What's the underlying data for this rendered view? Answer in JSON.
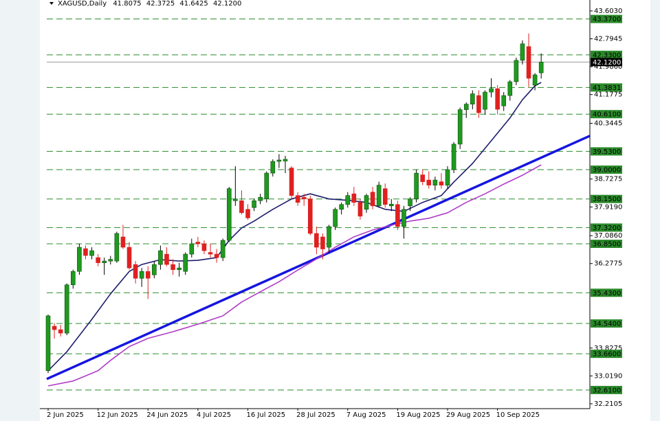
{
  "chart_data": {
    "type": "candlestick",
    "title": "XAGUSD,Daily",
    "header_values": [
      41.8075,
      42.3725,
      41.6425,
      {
        "value": 42.12,
        "label": "42.1200"
      }
    ],
    "categories": [
      "2 Jun 2025",
      null,
      null,
      null,
      null,
      null,
      null,
      null,
      "12 Jun 2025",
      null,
      null,
      null,
      null,
      null,
      null,
      null,
      "24 Jun 2025",
      null,
      null,
      null,
      null,
      null,
      null,
      null,
      "4 Jul 2025",
      null,
      null,
      null,
      null,
      null,
      null,
      null,
      "16 Jul 2025",
      null,
      null,
      null,
      null,
      null,
      null,
      null,
      "28 Jul 2025",
      null,
      null,
      null,
      null,
      null,
      null,
      null,
      "7 Aug 2025",
      null,
      null,
      null,
      null,
      null,
      null,
      null,
      "19 Aug 2025",
      null,
      null,
      null,
      null,
      null,
      null,
      null,
      "29 Aug 2025",
      null,
      null,
      null,
      null,
      null,
      null,
      null,
      "10 Sep 2025",
      null,
      null,
      null,
      null,
      null,
      null,
      null
    ],
    "open": [
      33.17,
      34.46,
      34.36,
      34.26,
      35.66,
      36.05,
      36.71,
      36.51,
      36.45,
      36.3,
      36.35,
      36.35,
      37.05,
      36.75,
      36.25,
      35.85,
      36.05,
      35.95,
      36.25,
      36.55,
      36.25,
      36.1,
      36.05,
      36.55,
      36.9,
      36.85,
      36.6,
      36.55,
      36.45,
      36.95,
      38.1,
      38.1,
      37.85,
      37.9,
      38.1,
      38.15,
      38.9,
      39.24,
      39.25,
      39.05,
      38.25,
      38.2,
      38.15,
      37.15,
      37.05,
      36.75,
      37.35,
      37.85,
      37.99,
      38.3,
      38.05,
      37.85,
      38.35,
      37.95,
      38.45,
      37.95,
      37.99,
      37.35,
      37.95,
      38.15,
      38.85,
      38.7,
      38.55,
      38.65,
      38.55,
      39.0,
      39.74,
      40.74,
      40.9,
      41.15,
      40.75,
      41.25,
      41.35,
      40.85,
      41.15,
      41.55,
      42.17,
      42.57,
      41.45,
      41.8075
    ],
    "high": [
      34.8,
      34.55,
      34.5,
      35.7,
      36.1,
      36.85,
      36.8,
      36.75,
      36.55,
      36.45,
      36.5,
      37.2,
      37.4,
      36.9,
      36.35,
      36.15,
      36.2,
      36.35,
      36.8,
      36.75,
      36.4,
      36.3,
      36.6,
      37.0,
      37.05,
      36.95,
      36.85,
      36.7,
      37.0,
      38.5,
      39.1,
      38.4,
      38.0,
      38.15,
      38.3,
      38.95,
      39.3,
      39.45,
      39.4,
      39.1,
      38.35,
      38.3,
      38.25,
      37.35,
      37.15,
      37.4,
      37.9,
      38.05,
      38.35,
      38.5,
      38.15,
      38.3,
      38.5,
      38.65,
      38.6,
      38.15,
      38.1,
      37.95,
      38.2,
      39.0,
      39.0,
      38.95,
      38.8,
      38.9,
      39.1,
      39.8,
      40.8,
      40.95,
      41.3,
      41.3,
      41.3,
      41.65,
      41.45,
      41.25,
      41.6,
      42.25,
      42.75,
      42.95,
      41.8,
      42.3725
    ],
    "low": [
      33.1,
      34.1,
      34.16,
      34.2,
      35.55,
      35.95,
      36.4,
      36.4,
      36.2,
      35.95,
      36.25,
      36.3,
      36.7,
      36.1,
      35.7,
      35.6,
      35.25,
      35.85,
      36.1,
      36.2,
      35.95,
      35.9,
      35.95,
      36.45,
      36.75,
      36.55,
      36.45,
      36.3,
      36.35,
      36.9,
      37.95,
      37.7,
      37.55,
      37.8,
      38.0,
      38.05,
      38.8,
      39.05,
      38.9,
      38.15,
      37.95,
      37.95,
      37.1,
      36.55,
      36.4,
      36.6,
      37.25,
      37.7,
      37.9,
      37.95,
      37.55,
      37.75,
      37.85,
      37.9,
      37.9,
      37.8,
      37.25,
      37.0,
      37.8,
      38.05,
      38.55,
      38.45,
      38.4,
      38.45,
      38.45,
      38.9,
      39.6,
      40.5,
      40.75,
      40.5,
      40.6,
      41.1,
      40.6,
      40.7,
      41.0,
      41.45,
      42.05,
      41.4,
      41.3,
      41.6425
    ],
    "close": [
      34.76,
      34.36,
      34.26,
      35.66,
      36.05,
      36.75,
      36.51,
      36.65,
      36.3,
      36.35,
      36.4,
      37.15,
      36.75,
      36.15,
      35.85,
      36.05,
      35.85,
      36.25,
      36.65,
      36.25,
      36.1,
      36.15,
      36.55,
      36.85,
      36.85,
      36.65,
      36.55,
      36.45,
      36.95,
      38.45,
      38.15,
      37.75,
      37.6,
      38.1,
      38.2,
      38.9,
      39.24,
      39.28,
      39.3,
      38.25,
      38.05,
      38.15,
      37.15,
      36.75,
      36.7,
      37.35,
      37.85,
      37.99,
      38.25,
      38.05,
      37.65,
      38.25,
      37.95,
      38.55,
      37.99,
      38.0,
      37.35,
      37.85,
      38.15,
      38.9,
      38.65,
      38.55,
      38.7,
      38.55,
      39.0,
      39.74,
      40.74,
      40.9,
      41.2,
      40.65,
      41.25,
      41.35,
      40.75,
      41.15,
      41.55,
      42.17,
      42.65,
      41.65,
      41.75,
      42.12
    ],
    "up_color": "#1f9a1f",
    "down_color": "#e02020",
    "moving_averages": [
      {
        "color": "#1c1c6b",
        "x": [
          0,
          3,
          7,
          10,
          13,
          15,
          18,
          21,
          24,
          27,
          29,
          31,
          33,
          36,
          39,
          42,
          45,
          48,
          51,
          54,
          57,
          60,
          63,
          65,
          68,
          71,
          74,
          76,
          78,
          79
        ],
        "values": [
          33.17,
          33.72,
          34.66,
          35.4,
          36.05,
          36.25,
          36.39,
          36.35,
          36.37,
          36.45,
          36.95,
          37.31,
          37.51,
          37.85,
          38.15,
          38.3,
          38.15,
          38.11,
          38.05,
          37.85,
          37.79,
          38.05,
          38.25,
          38.64,
          39.18,
          39.84,
          40.5,
          41.03,
          41.43,
          41.53
        ]
      },
      {
        "color": "#b03cc8",
        "x": [
          0,
          4,
          8,
          10,
          13,
          16,
          20,
          24,
          28,
          31,
          34,
          37,
          40,
          43,
          46,
          49,
          52,
          55,
          58,
          61,
          64,
          67,
          70,
          73,
          76,
          79
        ],
        "values": [
          32.73,
          32.87,
          33.17,
          33.47,
          33.87,
          34.11,
          34.3,
          34.52,
          34.76,
          35.16,
          35.46,
          35.75,
          36.09,
          36.41,
          36.75,
          37.05,
          37.25,
          37.39,
          37.51,
          37.59,
          37.75,
          38.05,
          38.3,
          38.58,
          38.84,
          39.14
        ]
      }
    ],
    "trendline": {
      "color": "#1515e0",
      "x": [
        -0.22,
        86.8
      ],
      "values": [
        32.93,
        39.98
      ]
    },
    "levels": [
      {
        "value": 43.37,
        "label": "43.3700"
      },
      {
        "value": 42.33,
        "label": "42.3300"
      },
      {
        "value": 41.3831,
        "label": "41.3831"
      },
      {
        "value": 40.61,
        "label": "40.6100"
      },
      {
        "value": 39.53,
        "label": "39.5300"
      },
      {
        "value": 39.0,
        "label": "39.0000"
      },
      {
        "value": 38.15,
        "label": "38.1500"
      },
      {
        "value": 37.32,
        "label": "37.3200"
      },
      {
        "value": 36.85,
        "label": "36.8500"
      },
      {
        "value": 35.43,
        "label": "35.4300"
      },
      {
        "value": 34.54,
        "label": "34.5400"
      },
      {
        "value": 33.66,
        "label": "33.6600"
      },
      {
        "value": 32.61,
        "label": "32.6100"
      }
    ],
    "level_color": "#2a8a2a",
    "current_price": {
      "value": 42.12,
      "label": "42.1200"
    },
    "xlim": [
      -0.22,
      86.8
    ],
    "ylim": [
      32.07,
      43.92
    ],
    "yticks": [
      {
        "value": 43.603,
        "label": "43.6030"
      },
      {
        "value": 42.7945,
        "label": "42.7945"
      },
      {
        "value": 41.986,
        "label": "41.9860"
      },
      {
        "value": 41.1775,
        "label": "41.1775"
      },
      {
        "value": 40.3445,
        "label": "40.3445"
      },
      {
        "value": 38.7275,
        "label": "38.7275"
      },
      {
        "value": 37.919,
        "label": "37.9190"
      },
      {
        "value": 37.086,
        "label": "37.0860"
      },
      {
        "value": 36.2775,
        "label": "36.2775"
      },
      {
        "value": 33.8275,
        "label": "33.8275"
      },
      {
        "value": 33.019,
        "label": "33.0190"
      },
      {
        "value": 32.2105,
        "label": "32.2105"
      }
    ]
  }
}
